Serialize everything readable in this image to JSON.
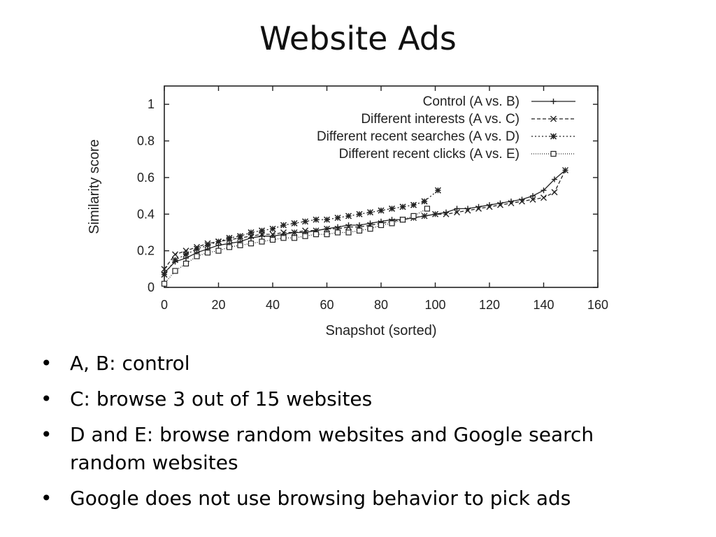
{
  "slide": {
    "title": "Website Ads",
    "bullets": [
      "A, B: control",
      "C: browse 3 out of 15 websites",
      "D and E: browse random websites and Google search random websites",
      "Google does not use browsing behavior to pick ads"
    ]
  },
  "chart_data": {
    "type": "line",
    "title": "",
    "xlabel": "Snapshot (sorted)",
    "ylabel": "Similarity score",
    "xlim": [
      0,
      160
    ],
    "ylim": [
      0,
      1.1
    ],
    "xticks": [
      "0",
      "20",
      "40",
      "60",
      "80",
      "100",
      "120",
      "140",
      "160"
    ],
    "yticks": [
      "0",
      "0.2",
      "0.4",
      "0.6",
      "0.8",
      "1"
    ],
    "grid": false,
    "legend_position": "top-right",
    "series": [
      {
        "name": "Control (A vs. B)",
        "marker": "plus",
        "line": "solid",
        "x": [
          0,
          4,
          8,
          12,
          16,
          20,
          24,
          28,
          32,
          36,
          40,
          44,
          48,
          52,
          56,
          60,
          64,
          68,
          72,
          76,
          80,
          84,
          88,
          92,
          96,
          100,
          104,
          108,
          112,
          116,
          120,
          124,
          128,
          132,
          136,
          140,
          144,
          148
        ],
        "y": [
          0.08,
          0.14,
          0.16,
          0.19,
          0.21,
          0.23,
          0.24,
          0.25,
          0.27,
          0.28,
          0.28,
          0.29,
          0.3,
          0.3,
          0.31,
          0.32,
          0.33,
          0.34,
          0.34,
          0.35,
          0.36,
          0.37,
          0.37,
          0.38,
          0.39,
          0.4,
          0.41,
          0.43,
          0.43,
          0.44,
          0.45,
          0.46,
          0.47,
          0.48,
          0.5,
          0.53,
          0.59,
          0.64
        ]
      },
      {
        "name": "Different interests (A vs. C)",
        "marker": "x",
        "line": "dashed",
        "x": [
          0,
          4,
          8,
          12,
          16,
          20,
          24,
          28,
          32,
          36,
          40,
          44,
          48,
          52,
          56,
          60,
          64,
          68,
          72,
          76,
          80,
          84,
          88,
          92,
          96,
          100,
          104,
          108,
          112,
          116,
          120,
          124,
          128,
          132,
          136,
          140,
          144,
          148
        ],
        "y": [
          0.1,
          0.18,
          0.2,
          0.22,
          0.24,
          0.25,
          0.26,
          0.27,
          0.28,
          0.29,
          0.29,
          0.3,
          0.3,
          0.31,
          0.31,
          0.32,
          0.32,
          0.33,
          0.33,
          0.34,
          0.35,
          0.36,
          0.37,
          0.38,
          0.39,
          0.4,
          0.4,
          0.41,
          0.42,
          0.43,
          0.44,
          0.45,
          0.46,
          0.47,
          0.48,
          0.49,
          0.52,
          0.64
        ]
      },
      {
        "name": "Different recent searches (A vs. D)",
        "marker": "star",
        "line": "dotted",
        "x": [
          0,
          4,
          8,
          12,
          16,
          20,
          24,
          28,
          32,
          36,
          40,
          44,
          48,
          52,
          56,
          60,
          64,
          68,
          72,
          76,
          80,
          84,
          88,
          92,
          96,
          101
        ],
        "y": [
          0.07,
          0.15,
          0.18,
          0.21,
          0.23,
          0.25,
          0.27,
          0.28,
          0.3,
          0.31,
          0.32,
          0.34,
          0.35,
          0.36,
          0.37,
          0.37,
          0.38,
          0.39,
          0.4,
          0.41,
          0.42,
          0.43,
          0.44,
          0.45,
          0.47,
          0.53
        ]
      },
      {
        "name": "Different recent clicks (A vs. E)",
        "marker": "square",
        "line": "dotted-fine",
        "x": [
          0,
          4,
          8,
          12,
          16,
          20,
          24,
          28,
          32,
          36,
          40,
          44,
          48,
          52,
          56,
          60,
          64,
          68,
          72,
          76,
          80,
          84,
          88,
          92,
          97
        ],
        "y": [
          0.02,
          0.09,
          0.13,
          0.17,
          0.19,
          0.2,
          0.22,
          0.23,
          0.24,
          0.25,
          0.26,
          0.27,
          0.27,
          0.28,
          0.29,
          0.29,
          0.3,
          0.3,
          0.31,
          0.32,
          0.34,
          0.35,
          0.37,
          0.39,
          0.43
        ]
      }
    ]
  },
  "colors": {
    "ink": "#222222",
    "background": "#ffffff"
  }
}
